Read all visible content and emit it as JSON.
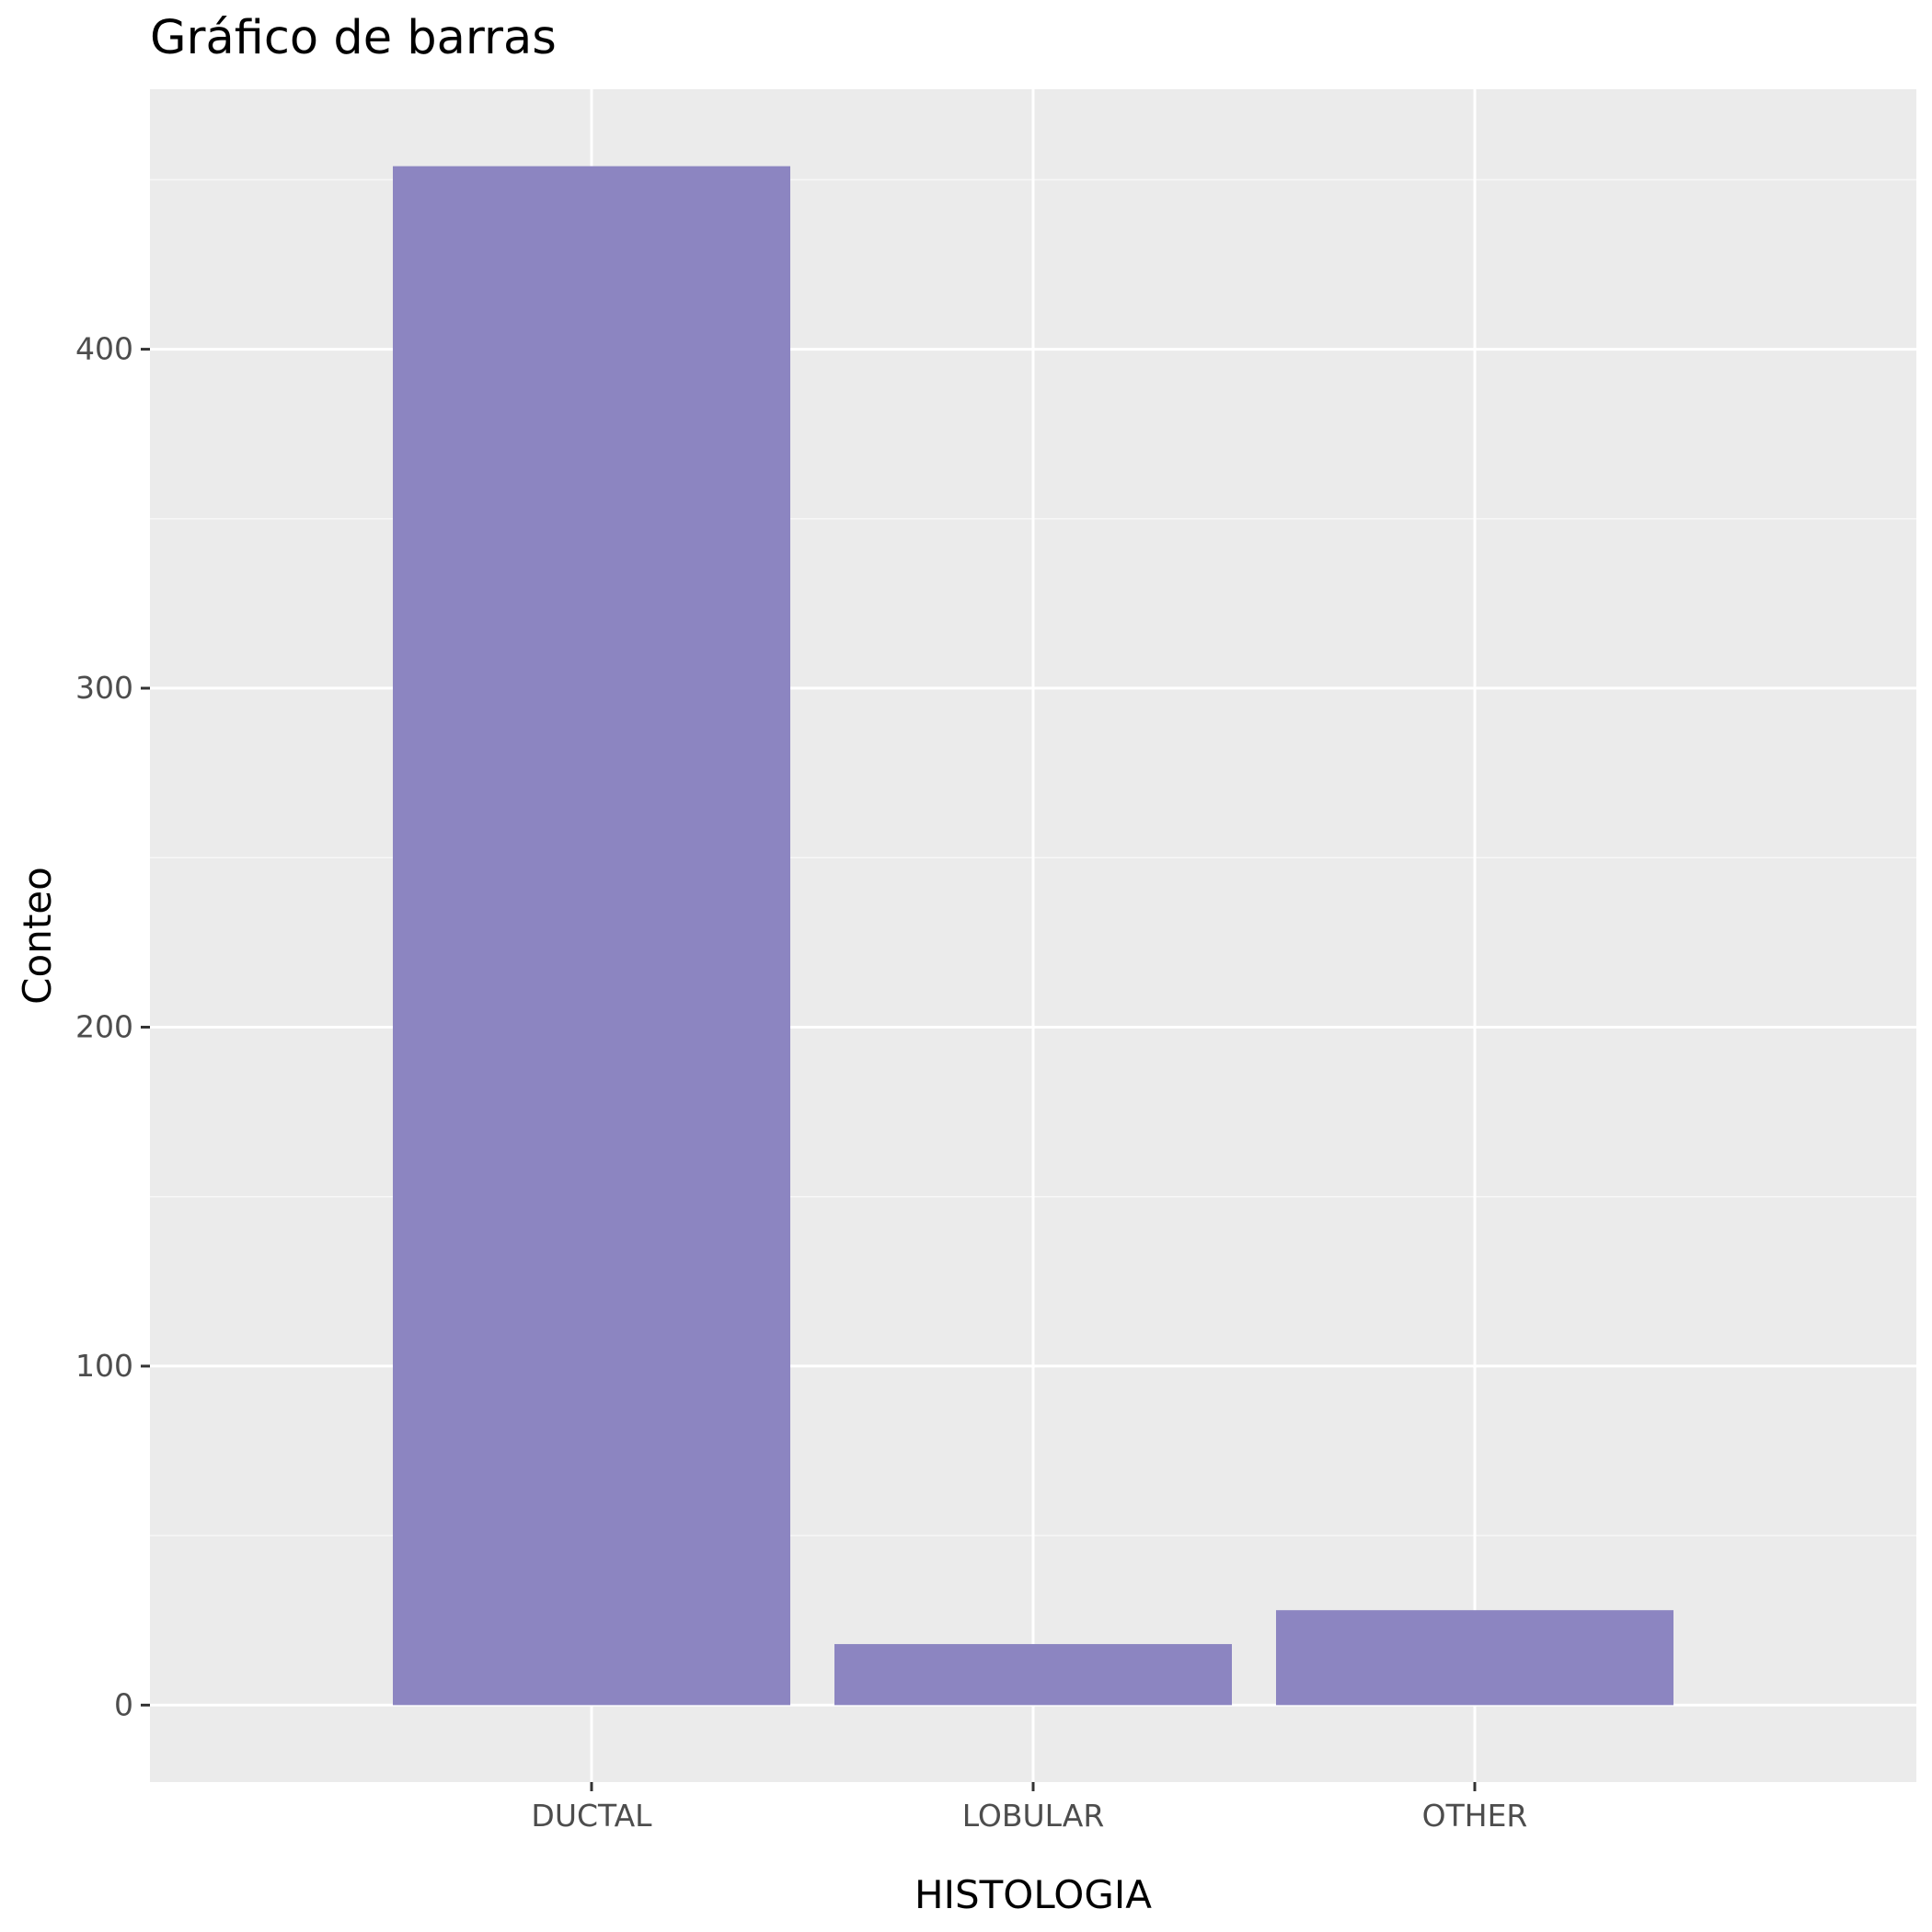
{
  "chart_data": {
    "type": "bar",
    "title": "Gráfico de barras",
    "xlabel": "HISTOLOGIA",
    "ylabel": "Conteo",
    "categories": [
      "DUCTAL",
      "LOBULAR",
      "OTHER"
    ],
    "values": [
      454,
      18,
      28
    ],
    "yticks": [
      0,
      100,
      200,
      300,
      400
    ],
    "ylim": [
      -22.7,
      476.7
    ],
    "grid": true,
    "legend": "none",
    "colors": {
      "bar": "#8c85c1",
      "panel_background": "#ebebeb",
      "grid_major": "#ffffff",
      "grid_minor": "#f7f7f7",
      "tick_text": "#4d4d4d",
      "tick_mark": "#333333"
    }
  }
}
